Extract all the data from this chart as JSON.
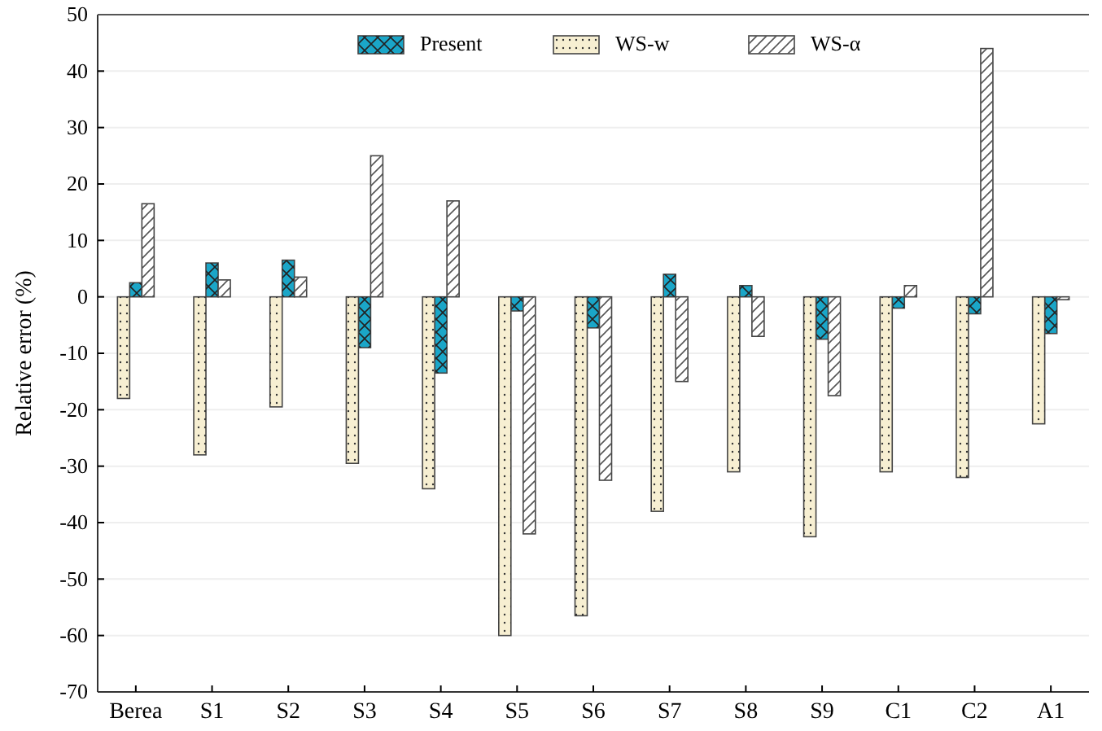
{
  "chart_data": {
    "type": "bar",
    "ylabel": "Relative error (%)",
    "categories": [
      "Berea",
      "S1",
      "S2",
      "S3",
      "S4",
      "S5",
      "S6",
      "S7",
      "S8",
      "S9",
      "C1",
      "C2",
      "A1"
    ],
    "series": [
      {
        "name": "Present",
        "color": "#1aa6c8",
        "values": [
          2.5,
          6,
          6.5,
          -9,
          -13.5,
          -2.5,
          -5.5,
          4,
          2,
          -7.5,
          -2,
          -3,
          -6.5
        ]
      },
      {
        "name": "WS-w",
        "color": "#f7efd2",
        "values": [
          -18,
          -28,
          -19.5,
          -29.5,
          -34,
          -60,
          -56.5,
          -38,
          -31,
          -42.5,
          -31,
          -32,
          -22.5
        ]
      },
      {
        "name": "WS-α",
        "color": "#ffffff",
        "values": [
          16.5,
          3,
          3.5,
          25,
          17,
          -42,
          -32.5,
          -15,
          -7,
          -17.5,
          2,
          44,
          -0.5
        ]
      }
    ],
    "ylim": [
      -70,
      50
    ],
    "yticks": [
      -70,
      -60,
      -50,
      -40,
      -30,
      -20,
      -10,
      0,
      10,
      20,
      30,
      40,
      50
    ],
    "grid": "y",
    "legend": "top"
  }
}
